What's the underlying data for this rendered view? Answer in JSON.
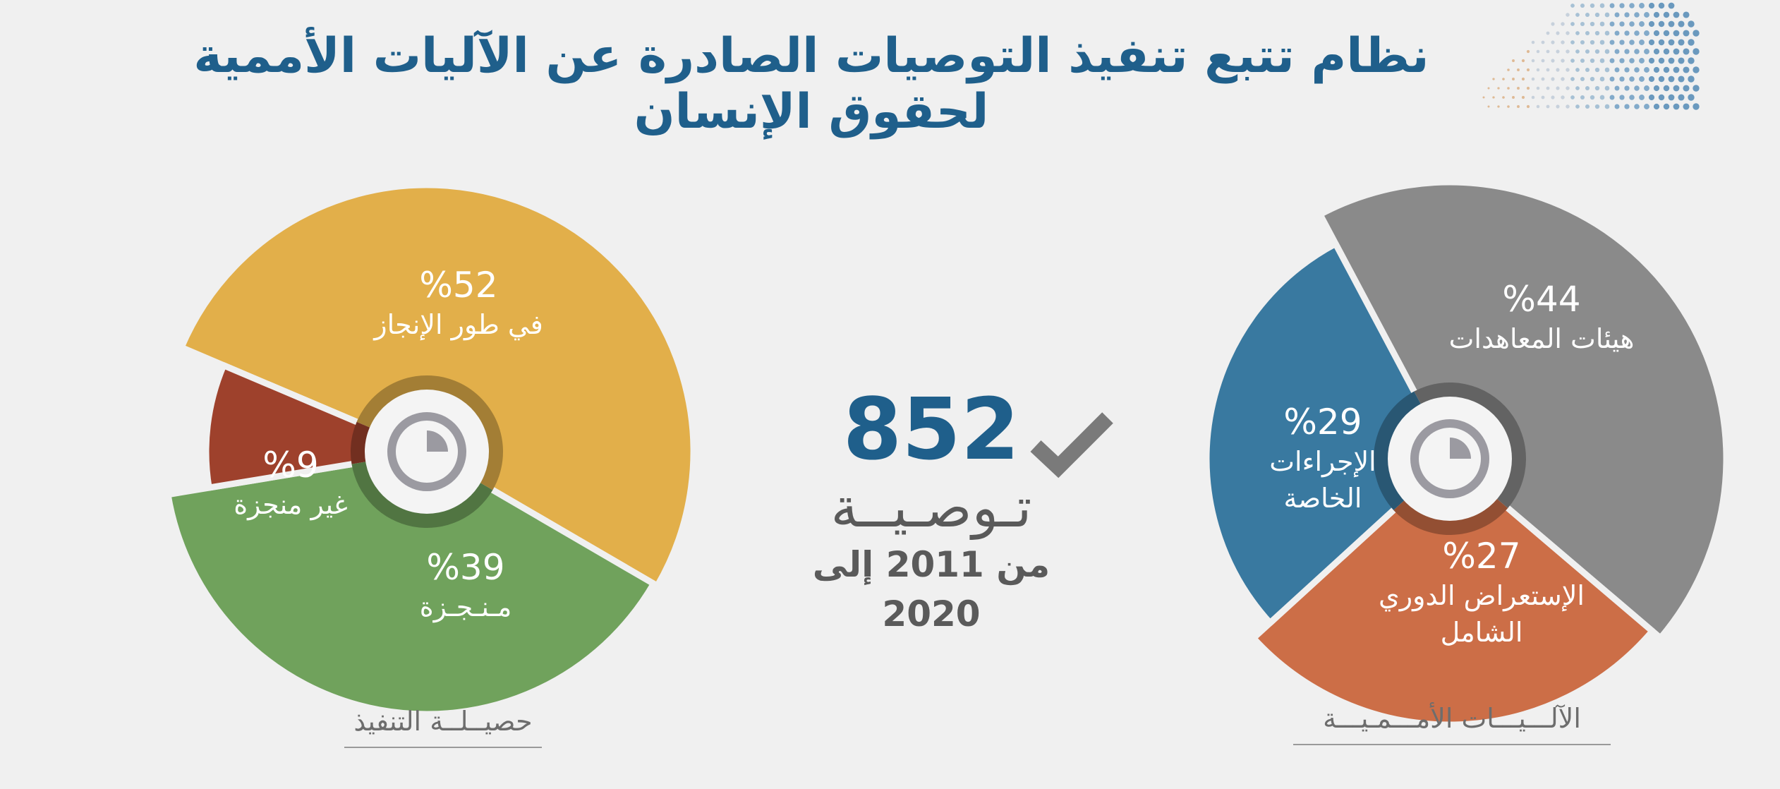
{
  "title": "نظام تتبع تنفيذ التوصيات الصادرة عن الآليات الأممية لحقوق الإنسان",
  "summary": {
    "total": "852",
    "unit": "تـوصـيــة",
    "range": "من 2011 إلى 2020",
    "check_icon": "checkmark-icon"
  },
  "chart_data": [
    {
      "type": "pie",
      "caption": "حصيــلــة التنفيذ",
      "slices": [
        {
          "pct_label": "%52",
          "name": "في طور الإنجاز",
          "value": 52,
          "color": "#e2af4a"
        },
        {
          "pct_label": "%39",
          "name": "مـنـجـزة",
          "value": 39,
          "color": "#70a25c"
        },
        {
          "pct_label": "%9",
          "name": "غير منجزة",
          "value": 9,
          "color": "#9e412c"
        }
      ],
      "center_icon": "pie-chart-icon"
    },
    {
      "type": "pie",
      "caption": "الآلـــيـــات الأمـــمـيـــة",
      "slices": [
        {
          "pct_label": "%44",
          "name": "هيئات المعاهدات",
          "value": 44,
          "color": "#8a8a8a"
        },
        {
          "pct_label": "%27",
          "name": "الإستعراض الدوري الشامل",
          "value": 27,
          "color": "#cc6e47"
        },
        {
          "pct_label": "%29",
          "name": "الإجراءات الخاصة",
          "value": 29,
          "color": "#3979a0"
        }
      ],
      "center_icon": "pie-chart-icon"
    }
  ]
}
